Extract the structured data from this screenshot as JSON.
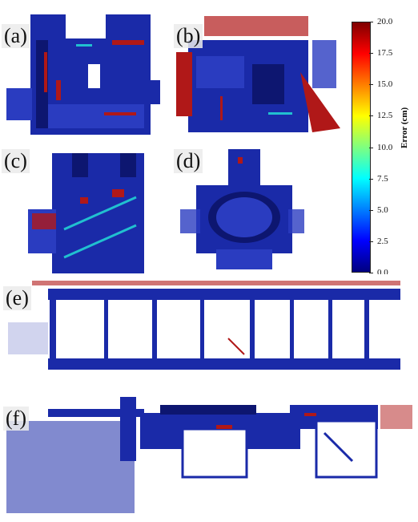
{
  "panels": [
    {
      "id": "a",
      "label": "(a)"
    },
    {
      "id": "b",
      "label": "(b)"
    },
    {
      "id": "c",
      "label": "(c)"
    },
    {
      "id": "d",
      "label": "(d)"
    },
    {
      "id": "e",
      "label": "(e)"
    },
    {
      "id": "f",
      "label": "(f)"
    }
  ],
  "colorbar": {
    "title": "Error (cm)",
    "min": 0.0,
    "max": 20.0,
    "ticks": [
      "20.0",
      "17.5",
      "15.0",
      "12.5",
      "10.0",
      "7.5",
      "5.0",
      "2.5",
      "0.0"
    ],
    "colors": [
      "#00007f",
      "#0000ff",
      "#007fff",
      "#00ffff",
      "#7fff7f",
      "#ffff00",
      "#ff7f00",
      "#ff0000",
      "#7f0000"
    ]
  },
  "colors": {
    "structure": "#1a2aa8",
    "dark_structure": "#0d1670",
    "error_high": "#b01818",
    "error_mid": "#21c0d0"
  }
}
